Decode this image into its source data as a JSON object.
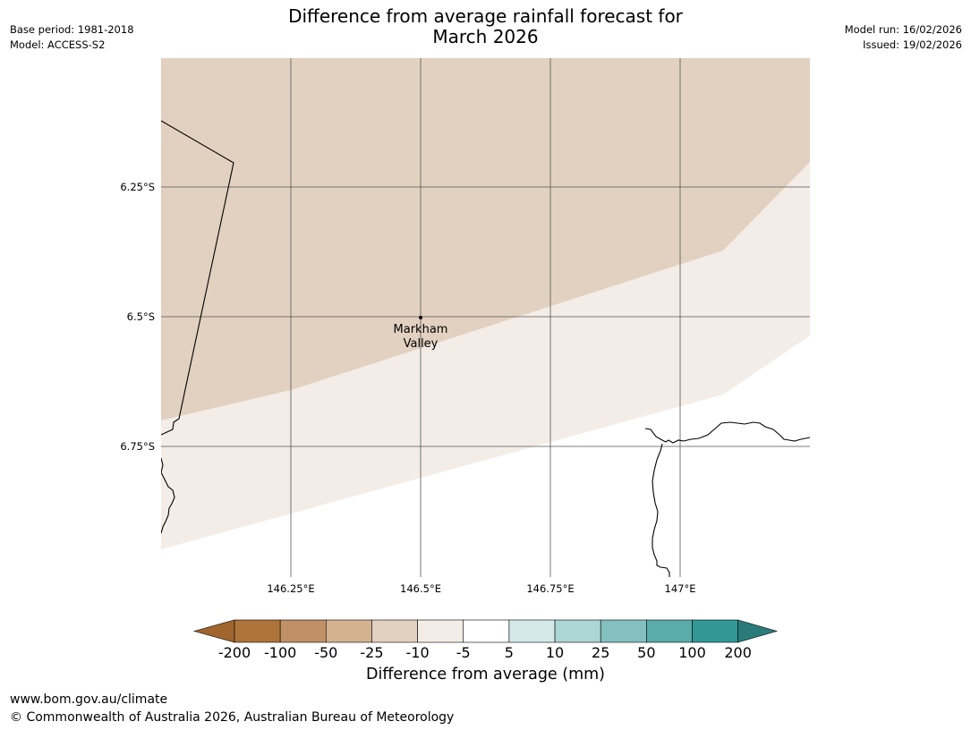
{
  "title": {
    "line1": "Difference from average rainfall forecast for",
    "line2": "March 2026"
  },
  "meta": {
    "base_period": "Base period: 1981-2018",
    "model": "Model: ACCESS-S2",
    "model_run": "Model run: 16/02/2026",
    "issued": "Issued: 19/02/2026"
  },
  "map": {
    "lat_labels": [
      "6.25°S",
      "6.5°S",
      "6.75°S"
    ],
    "lon_labels": [
      "146.25°E",
      "146.5°E",
      "146.75°E",
      "147°E"
    ],
    "place": {
      "name_line1": "Markham",
      "name_line2": "Valley"
    },
    "colors": {
      "band_minus25_to_minus10": "#e2d1c0",
      "band_minus10_to_minus5": "#f4ece6",
      "band_minus5_to_5": "#ffffff",
      "gridline": "#555555",
      "coastline": "#000000"
    }
  },
  "legend": {
    "title": "Difference from average (mm)",
    "ticks": [
      "-200",
      "-100",
      "-50",
      "-25",
      "-10",
      "-5",
      "5",
      "10",
      "25",
      "50",
      "100",
      "200"
    ],
    "colors": [
      "#a0662e",
      "#ae743a",
      "#c09166",
      "#d3b290",
      "#e2d1c0",
      "#f4ece6",
      "#ffffff",
      "#d5e9e9",
      "#acd5d5",
      "#83c0bf",
      "#5aabaa",
      "#319897",
      "#2b7b7a"
    ]
  },
  "footer": {
    "url": "www.bom.gov.au/climate",
    "copyright": "© Commonwealth of Australia 2026, Australian Bureau of Meteorology"
  }
}
